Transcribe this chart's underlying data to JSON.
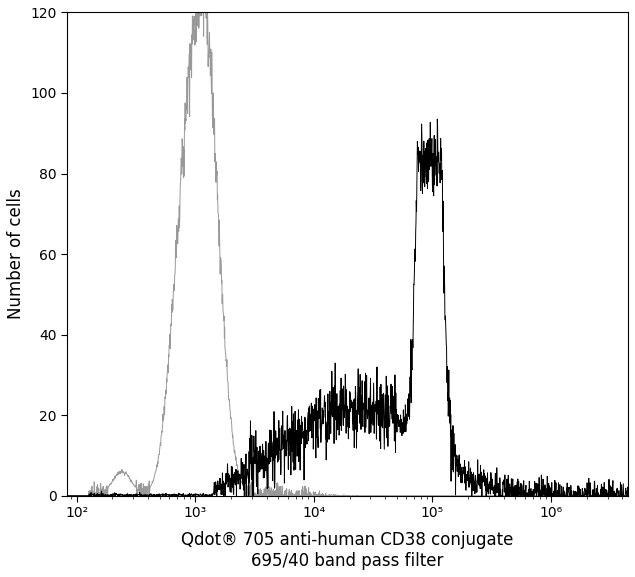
{
  "xlabel_line1": "Qdot® 705 anti-human CD38 conjugate",
  "xlabel_line2": "695/40 band pass filter",
  "ylabel": "Number of cells",
  "xlim_log": [
    1.92,
    6.65
  ],
  "ylim": [
    0,
    120
  ],
  "yticks": [
    0,
    20,
    40,
    60,
    80,
    100,
    120
  ],
  "xtick_values": [
    100,
    1000,
    10000,
    100000,
    1000000
  ],
  "xtick_labels": [
    "10²",
    "10³",
    "10⁴",
    "10⁵",
    "10⁶"
  ],
  "gray_color": "#999999",
  "black_color": "#000000",
  "background_color": "#ffffff",
  "linewidth": 0.7,
  "xlabel_fontsize": 12,
  "ylabel_fontsize": 12,
  "tick_fontsize": 10
}
